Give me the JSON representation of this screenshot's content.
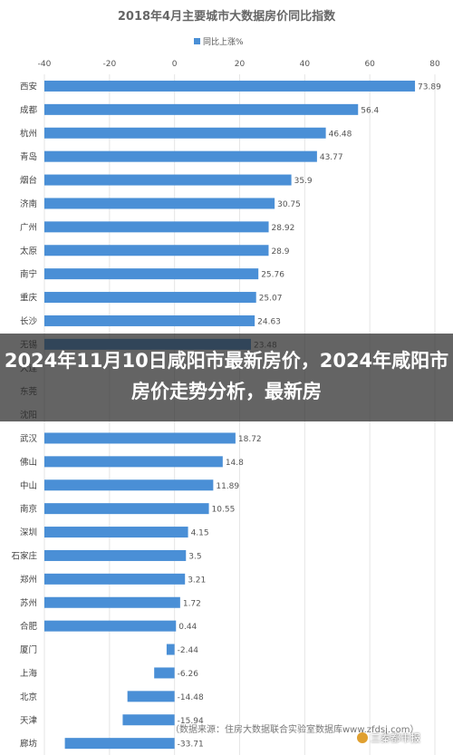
{
  "colors": {
    "bar": "#4a8fd6",
    "grid": "#e6e6e6",
    "text": "#555555",
    "title": "#666666",
    "overlay": "#2a2a2a"
  },
  "overlay": {
    "headline": "2024年11月10日咸阳市最新房价，2024年咸阳市房价走势分析，最新房"
  },
  "source_note": "（数据来源：住房大数据联合实验室数据库www.zfdsj.com）",
  "watermark": "三秦都市报",
  "chart_data": {
    "type": "bar",
    "orientation": "horizontal",
    "title": "2018年4月主要城市大数据房价同比指数",
    "legend": {
      "label": "同比上涨%",
      "position": "top"
    },
    "xlim": [
      -40,
      80
    ],
    "ticks": [
      -40,
      -20,
      0,
      20,
      40,
      60,
      80
    ],
    "grid": true,
    "categories": [
      "西安",
      "成都",
      "杭州",
      "青岛",
      "烟台",
      "济南",
      "广州",
      "太原",
      "南宁",
      "重庆",
      "长沙",
      "无锡",
      "大连",
      "东莞",
      "沈阳",
      "武汉",
      "佛山",
      "中山",
      "南京",
      "深圳",
      "石家庄",
      "郑州",
      "苏州",
      "合肥",
      "厦门",
      "上海",
      "北京",
      "天津",
      "廊坊"
    ],
    "values": [
      73.89,
      56.4,
      46.48,
      43.77,
      35.9,
      30.75,
      28.92,
      28.9,
      25.76,
      25.07,
      24.63,
      23.48,
      null,
      null,
      null,
      18.72,
      14.8,
      11.89,
      10.55,
      4.15,
      3.5,
      3.21,
      1.72,
      0.44,
      -2.44,
      -6.26,
      -14.48,
      -15.94,
      -33.71
    ],
    "labels": [
      "73.89",
      "56.4",
      "46.48",
      "43.77",
      "35.9",
      "30.75",
      "28.92",
      "28.9",
      "25.76",
      "25.07",
      "24.63",
      "23.48",
      "",
      "",
      "",
      "18.72",
      "14.8",
      "11.89",
      "10.55",
      "4.15",
      "3.5",
      "3.21",
      "1.72",
      "0.44",
      "-2.44",
      "-6.26",
      "-14.48",
      "-15.94",
      "-33.71"
    ]
  }
}
